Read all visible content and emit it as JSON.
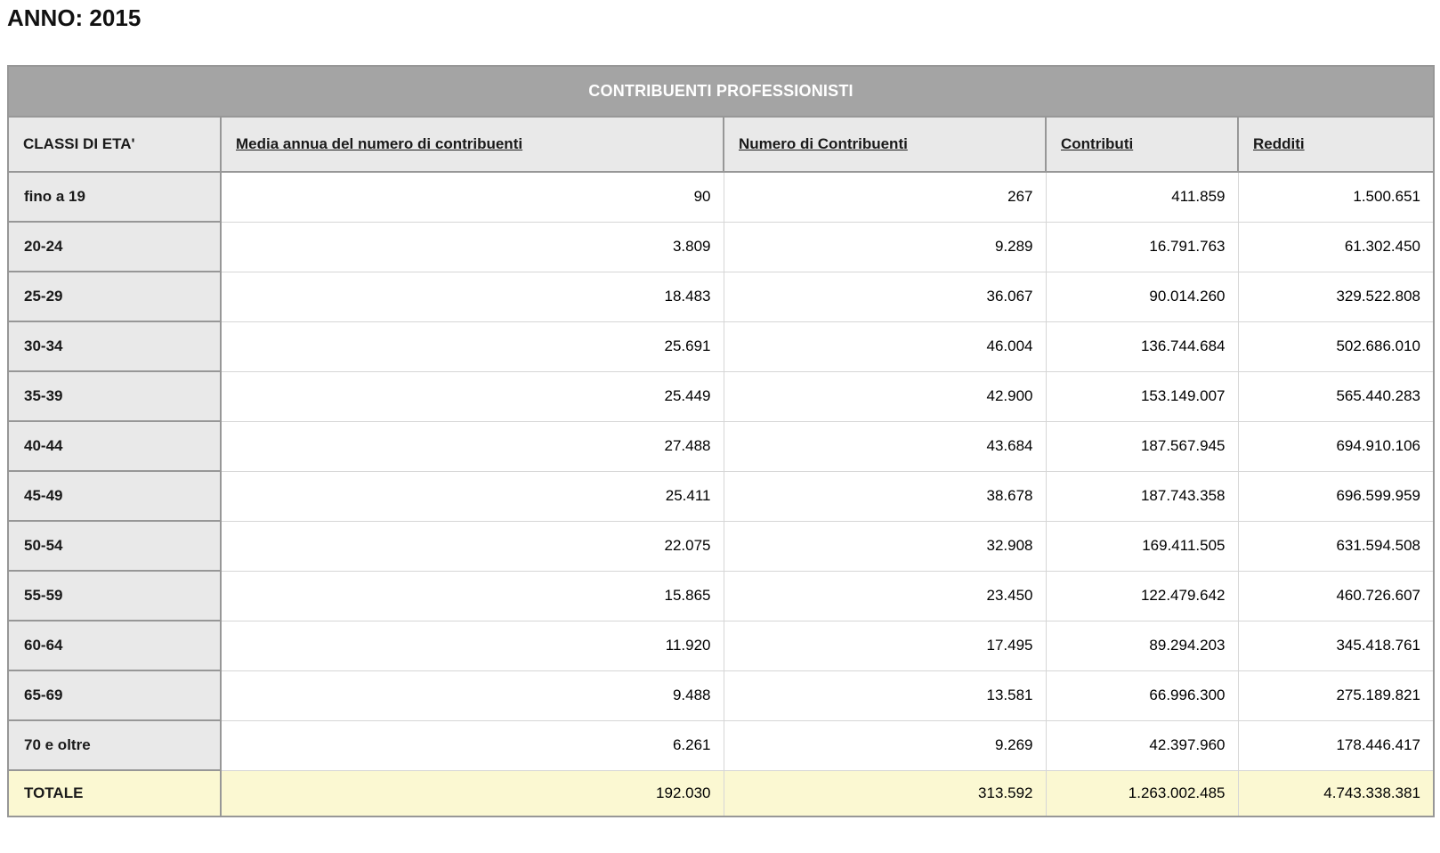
{
  "page_title": "ANNO: 2015",
  "table": {
    "caption": "CONTRIBUENTI PROFESSIONISTI",
    "columns": [
      "CLASSI DI ETA'",
      "Media annua del numero di contribuenti",
      "Numero di Contribuenti",
      "Contributi",
      "Redditi"
    ],
    "rows": [
      {
        "label": "fino a 19",
        "values": [
          "90",
          "267",
          "411.859",
          "1.500.651"
        ]
      },
      {
        "label": "20-24",
        "values": [
          "3.809",
          "9.289",
          "16.791.763",
          "61.302.450"
        ]
      },
      {
        "label": "25-29",
        "values": [
          "18.483",
          "36.067",
          "90.014.260",
          "329.522.808"
        ]
      },
      {
        "label": "30-34",
        "values": [
          "25.691",
          "46.004",
          "136.744.684",
          "502.686.010"
        ]
      },
      {
        "label": "35-39",
        "values": [
          "25.449",
          "42.900",
          "153.149.007",
          "565.440.283"
        ]
      },
      {
        "label": "40-44",
        "values": [
          "27.488",
          "43.684",
          "187.567.945",
          "694.910.106"
        ]
      },
      {
        "label": "45-49",
        "values": [
          "25.411",
          "38.678",
          "187.743.358",
          "696.599.959"
        ]
      },
      {
        "label": "50-54",
        "values": [
          "22.075",
          "32.908",
          "169.411.505",
          "631.594.508"
        ]
      },
      {
        "label": "55-59",
        "values": [
          "15.865",
          "23.450",
          "122.479.642",
          "460.726.607"
        ]
      },
      {
        "label": "60-64",
        "values": [
          "11.920",
          "17.495",
          "89.294.203",
          "345.418.761"
        ]
      },
      {
        "label": "65-69",
        "values": [
          "9.488",
          "13.581",
          "66.996.300",
          "275.189.821"
        ]
      },
      {
        "label": "70 e oltre",
        "values": [
          "6.261",
          "9.269",
          "42.397.960",
          "178.446.417"
        ]
      }
    ],
    "total_row": {
      "label": "TOTALE",
      "values": [
        "192.030",
        "313.592",
        "1.263.002.485",
        "4.743.338.381"
      ]
    }
  },
  "colors": {
    "band_bg": "#a4a4a4",
    "band_text": "#ffffff",
    "header_bg": "#e9e9e9",
    "total_bg": "#fbf8d2",
    "border_dark": "#979797",
    "border_light": "#d6d6d6"
  }
}
